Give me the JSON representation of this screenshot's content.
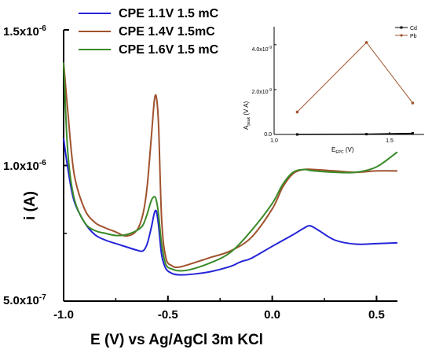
{
  "chart_data": [
    {
      "type": "line",
      "title": "",
      "xlabel": "E (V) vs Ag/AgCl 3m KCl",
      "ylabel": "i (A)",
      "xlim": [
        -1.0,
        0.6
      ],
      "ylim": [
        5e-07,
        1.5e-06
      ],
      "xticks": [
        "-1.0",
        "-0.5",
        "0.0",
        "0.5"
      ],
      "xtick_values": [
        -1.0,
        -0.5,
        0.0,
        0.5
      ],
      "yticks": [
        "5.0x10",
        "1.0x10",
        "1.5x10"
      ],
      "ytick_exponent": "-6",
      "ytick_exponent_low": "-7",
      "ytick_values": [
        5e-07,
        1e-06,
        1.5e-06
      ],
      "legend_position": "top-left",
      "grid": false,
      "series": [
        {
          "name": "CPE 1.1V 1.5 mC",
          "color": "#2424d8",
          "x": [
            -1.0,
            -0.98,
            -0.95,
            -0.9,
            -0.85,
            -0.8,
            -0.75,
            -0.7,
            -0.65,
            -0.62,
            -0.6,
            -0.58,
            -0.565,
            -0.555,
            -0.545,
            -0.53,
            -0.51,
            -0.48,
            -0.45,
            -0.4,
            -0.3,
            -0.2,
            -0.16,
            -0.14,
            -0.1,
            0.0,
            0.1,
            0.15,
            0.18,
            0.22,
            0.3,
            0.4,
            0.5,
            0.6
          ],
          "y": [
            1.1e-06,
            9.9e-07,
            8.7e-07,
            7.9e-07,
            7.45e-07,
            7.25e-07,
            7.12e-07,
            7e-07,
            6.88e-07,
            6.85e-07,
            7.1e-07,
            7.7e-07,
            8.25e-07,
            8.3e-07,
            7.8e-07,
            6.7e-07,
            6.2e-07,
            6.02e-07,
            5.97e-07,
            5.98e-07,
            6.08e-07,
            6.28e-07,
            6.42e-07,
            6.48e-07,
            6.58e-07,
            7.02e-07,
            7.45e-07,
            7.68e-07,
            7.78e-07,
            7.62e-07,
            7.25e-07,
            7.1e-07,
            7.12e-07,
            7.15e-07
          ]
        },
        {
          "name": "CPE 1.4V 1.5mC",
          "color": "#a0522d",
          "x": [
            -1.0,
            -0.98,
            -0.95,
            -0.9,
            -0.85,
            -0.8,
            -0.75,
            -0.7,
            -0.65,
            -0.62,
            -0.6,
            -0.58,
            -0.565,
            -0.555,
            -0.545,
            -0.53,
            -0.51,
            -0.48,
            -0.45,
            -0.4,
            -0.3,
            -0.2,
            -0.1,
            0.0,
            0.05,
            0.1,
            0.15,
            0.2,
            0.3,
            0.4,
            0.5,
            0.6
          ],
          "y": [
            1.38e-06,
            1.2e-06,
            9.7e-07,
            8.4e-07,
            7.9e-07,
            7.7e-07,
            7.55e-07,
            7.4e-07,
            7.6e-07,
            8.2e-07,
            9.2e-07,
            1.1e-06,
            1.24e-06,
            1.25e-06,
            1.15e-06,
            8e-07,
            6.6e-07,
            6.3e-07,
            6.25e-07,
            6.35e-07,
            6.6e-07,
            6.85e-07,
            7.35e-07,
            8.4e-07,
            9.2e-07,
            9.7e-07,
            9.85e-07,
            9.85e-07,
            9.8e-07,
            9.75e-07,
            9.8e-07,
            9.8e-07
          ]
        },
        {
          "name": "CPE 1.6V 1.5 mC",
          "color": "#3a8a28",
          "x": [
            -1.0,
            -0.98,
            -0.95,
            -0.9,
            -0.85,
            -0.8,
            -0.75,
            -0.7,
            -0.65,
            -0.62,
            -0.6,
            -0.58,
            -0.565,
            -0.555,
            -0.545,
            -0.53,
            -0.51,
            -0.48,
            -0.45,
            -0.4,
            -0.3,
            -0.2,
            -0.1,
            0.0,
            0.05,
            0.1,
            0.15,
            0.2,
            0.3,
            0.4,
            0.5,
            0.6
          ],
          "y": [
            1.38e-06,
            1.05e-06,
            8.8e-07,
            7.9e-07,
            7.6e-07,
            7.5e-07,
            7.42e-07,
            7.45e-07,
            7.6e-07,
            7.8e-07,
            8.2e-07,
            8.7e-07,
            8.85e-07,
            8.7e-07,
            8.2e-07,
            7.1e-07,
            6.35e-07,
            6.18e-07,
            6.12e-07,
            6.15e-07,
            6.4e-07,
            6.8e-07,
            7.6e-07,
            8.6e-07,
            9.3e-07,
            9.75e-07,
            9.85e-07,
            9.8e-07,
            9.75e-07,
            9.75e-07,
            9.95e-07,
            1.05e-06
          ]
        }
      ]
    },
    {
      "type": "line",
      "title": "",
      "xlabel": "E",
      "xlabel_sub": "EPC",
      "xlabel_unit": " (V)",
      "ylabel": "A",
      "ylabel_sub": "peak",
      "ylabel_unit": " (V A)",
      "xlim": [
        1.0,
        1.65
      ],
      "ylim": [
        0,
        4.8e-09
      ],
      "xticks": [
        "1.0",
        "1.5"
      ],
      "xtick_values": [
        1.0,
        1.5
      ],
      "yticks": [
        "0.0",
        "2.0x10",
        "4.0x10"
      ],
      "ytick_exponent": "-9",
      "ytick_values": [
        0,
        2e-09,
        4e-09
      ],
      "legend_position": "top-right",
      "series": [
        {
          "name": "Cd",
          "color": "#000000",
          "x": [
            1.1,
            1.4,
            1.6
          ],
          "y": [
            0.0,
            1.2e-11,
            5e-11
          ]
        },
        {
          "name": "Pb",
          "color": "#a0522d",
          "x": [
            1.1,
            1.4,
            1.6
          ],
          "y": [
            1e-09,
            4.1e-09,
            1.4e-09
          ]
        }
      ]
    }
  ]
}
